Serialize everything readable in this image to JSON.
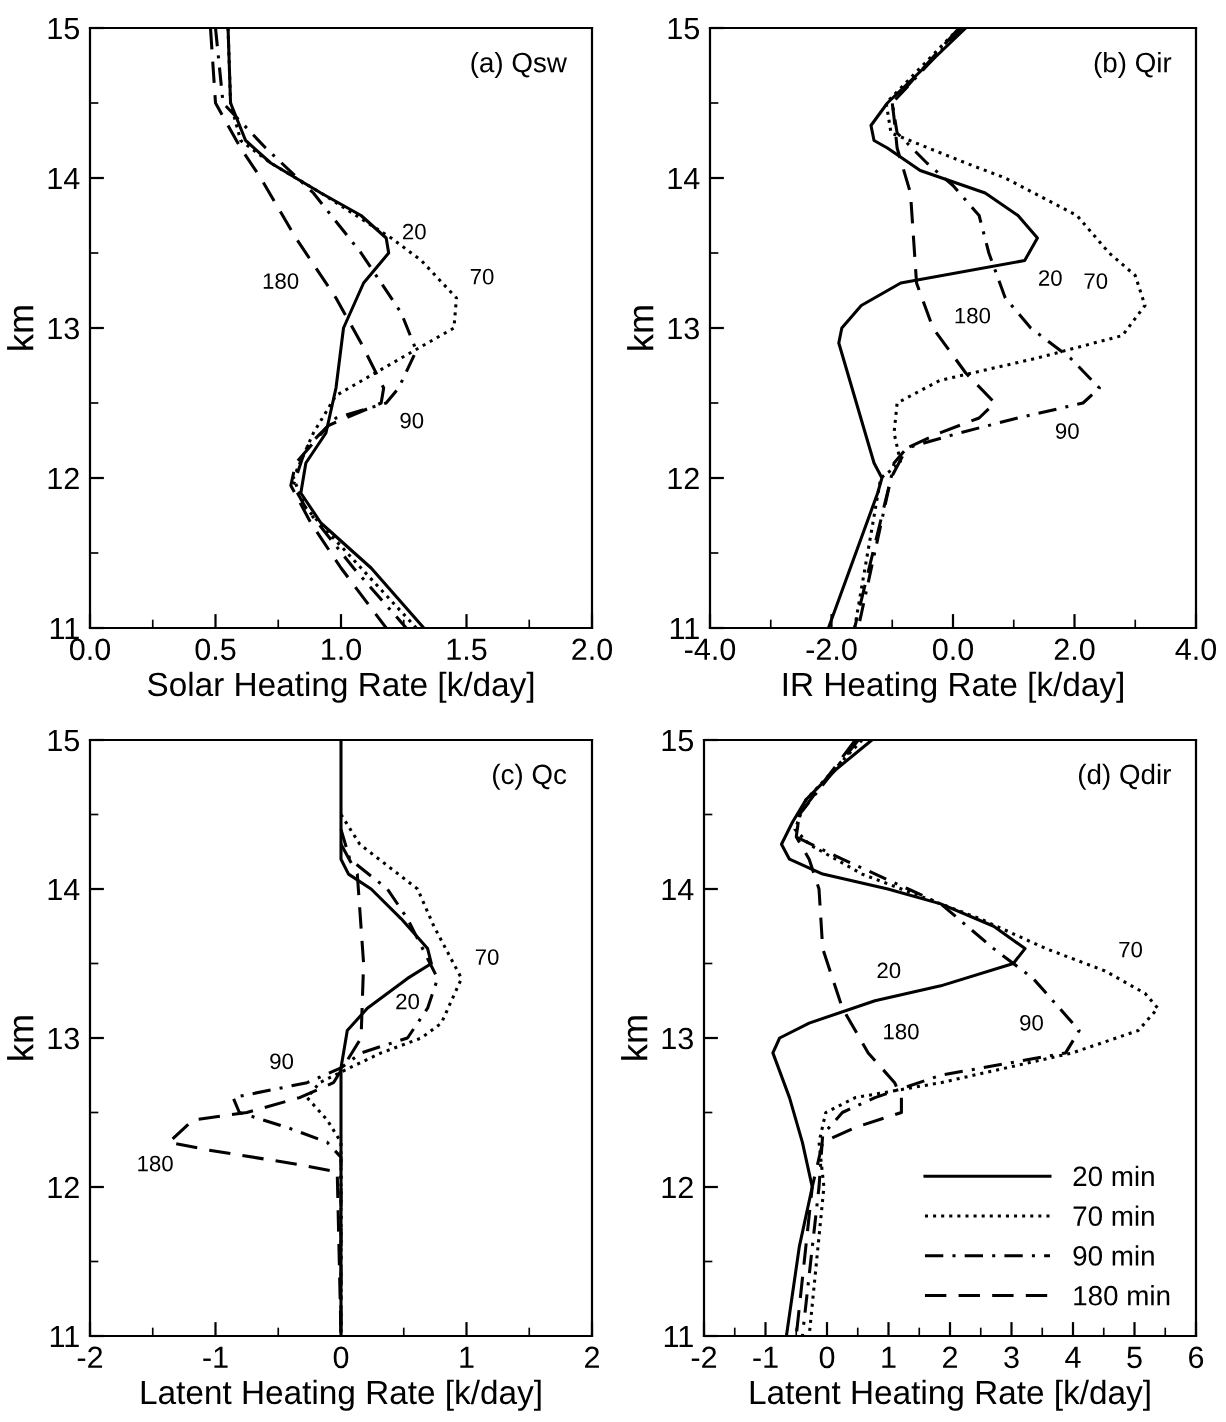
{
  "chart_data": [
    {
      "type": "line",
      "title": "(a) Qsw",
      "xlabel": "Solar Heating Rate [k/day]",
      "ylabel": "km",
      "xlim": [
        0,
        2
      ],
      "xticks": [
        {
          "value": 0,
          "label": "0.0"
        },
        {
          "value": 0.5,
          "label": "0.5"
        },
        {
          "value": 1,
          "label": "1.0"
        },
        {
          "value": 1.5,
          "label": "1.5"
        },
        {
          "value": 2,
          "label": "2.0"
        }
      ],
      "ylim": [
        11,
        15
      ],
      "yticks": [
        11,
        12,
        13,
        14,
        15
      ],
      "grid": false,
      "legend": false,
      "series": [
        {
          "color": "#000000",
          "line_style": "solid",
          "x": [
            0.55,
            0.56,
            0.62,
            0.72,
            0.92,
            1.08,
            1.18,
            1.19,
            1.09,
            1.01,
            0.98,
            0.94,
            0.86,
            0.84,
            0.92,
            1.12,
            1.33
          ],
          "values": [
            15,
            14.5,
            14.25,
            14.1,
            13.9,
            13.75,
            13.6,
            13.5,
            13.3,
            13.0,
            12.6,
            12.3,
            12.1,
            11.9,
            11.7,
            11.4,
            11.0
          ]
        },
        {
          "color": "#000000",
          "line_style": "dotted",
          "x": [
            0.55,
            0.56,
            0.6,
            0.72,
            0.92,
            1.06,
            1.2,
            1.32,
            1.46,
            1.45,
            1.24,
            0.98,
            0.89,
            0.81,
            0.86,
            1.08,
            1.3
          ],
          "values": [
            15,
            14.5,
            14.25,
            14.1,
            13.9,
            13.75,
            13.6,
            13.45,
            13.2,
            13.0,
            12.8,
            12.55,
            12.3,
            12.0,
            11.8,
            11.4,
            11.0
          ]
        },
        {
          "color": "#000000",
          "line_style": "dashdot",
          "x": [
            0.5,
            0.53,
            0.7,
            0.89,
            1.08,
            1.24,
            1.3,
            1.23,
            1.18,
            0.98,
            0.86,
            0.81,
            0.86,
            1.05,
            1.26
          ],
          "values": [
            15,
            14.5,
            14.2,
            13.9,
            13.5,
            13.1,
            12.85,
            12.6,
            12.5,
            12.4,
            12.2,
            11.95,
            11.8,
            11.4,
            11.0
          ]
        },
        {
          "color": "#000000",
          "line_style": "dashed",
          "x": [
            0.48,
            0.5,
            0.6,
            0.68,
            0.82,
            0.98,
            1.08,
            1.17,
            1.16,
            0.95,
            0.82,
            0.8,
            0.88,
            1.0,
            1.18
          ],
          "values": [
            15,
            14.5,
            14.2,
            14.0,
            13.6,
            13.2,
            12.9,
            12.6,
            12.5,
            12.35,
            12.1,
            11.95,
            11.7,
            11.4,
            11.0
          ]
        }
      ],
      "annotations": [
        {
          "text": "180",
          "x": 0.89,
          "y": 13.43
        },
        {
          "text": "20",
          "x": 1.19,
          "y": 13.5
        },
        {
          "text": "70",
          "x": 1.46,
          "y": 13.2
        },
        {
          "text": "90",
          "x": 1.18,
          "y": 12.5
        }
      ]
    },
    {
      "type": "line",
      "title": "(b) Qir",
      "xlabel": "IR Heating Rate [k/day]",
      "ylabel": "km",
      "xlim": [
        -4,
        4
      ],
      "xticks": [
        {
          "value": -4,
          "label": "-4.0"
        },
        {
          "value": -2,
          "label": "-2.0"
        },
        {
          "value": 0,
          "label": "0.0"
        },
        {
          "value": 2,
          "label": "2.0"
        },
        {
          "value": 4,
          "label": "4.0"
        }
      ],
      "ylim": [
        11,
        15
      ],
      "yticks": [
        11,
        12,
        13,
        14,
        15
      ],
      "grid": false,
      "legend": false,
      "series": [
        {
          "color": "#000000",
          "line_style": "solid",
          "x": [
            0.21,
            -1.08,
            -1.35,
            -1.3,
            -1.08,
            -0.54,
            0.53,
            1.07,
            1.39,
            1.18,
            -0.86,
            -1.51,
            -1.83,
            -1.88,
            -1.3,
            -1.17,
            -1.24,
            -2.05
          ],
          "values": [
            15,
            14.5,
            14.35,
            14.25,
            14.2,
            14.05,
            13.9,
            13.75,
            13.6,
            13.45,
            13.3,
            13.15,
            13.0,
            12.9,
            12.1,
            12.0,
            11.9,
            11.0
          ]
        },
        {
          "color": "#000000",
          "line_style": "dotted",
          "x": [
            0.1,
            -1.1,
            -1.02,
            0.21,
            0.86,
            2.04,
            2.57,
            3.0,
            3.16,
            2.79,
            1.39,
            -0.22,
            -0.92,
            -0.97,
            -0.86,
            -1.19,
            -1.62
          ],
          "values": [
            15,
            14.5,
            14.3,
            14.1,
            14.0,
            13.75,
            13.5,
            13.35,
            13.15,
            12.95,
            12.8,
            12.65,
            12.5,
            12.3,
            12.1,
            12.0,
            11.0
          ]
        },
        {
          "color": "#000000",
          "line_style": "dashdot",
          "x": [
            0.15,
            -1.0,
            -0.92,
            -0.43,
            0.0,
            0.43,
            0.59,
            0.86,
            1.28,
            1.93,
            2.41,
            2.14,
            1.07,
            0.1,
            -0.76,
            -0.97,
            -1.02,
            -1.56
          ],
          "values": [
            15,
            14.5,
            14.3,
            14.1,
            13.95,
            13.75,
            13.5,
            13.2,
            13.0,
            12.8,
            12.6,
            12.5,
            12.4,
            12.3,
            12.2,
            12.1,
            12.0,
            11.0
          ]
        },
        {
          "color": "#000000",
          "line_style": "dashed",
          "x": [
            0.1,
            -1.0,
            -0.97,
            -0.92,
            -0.7,
            -0.65,
            -0.6,
            -0.33,
            0.21,
            0.69,
            0.43,
            -0.22,
            -0.76,
            -1.02,
            -1.62
          ],
          "values": [
            15,
            14.5,
            14.4,
            14.2,
            13.9,
            13.6,
            13.3,
            13.0,
            12.7,
            12.5,
            12.4,
            12.3,
            12.2,
            12.0,
            11.0
          ]
        }
      ],
      "annotations": [
        {
          "text": "20",
          "x": 1.18,
          "y": 13.45
        },
        {
          "text": "70",
          "x": 2.77,
          "y": 13.43
        },
        {
          "text": "180",
          "x": -0.22,
          "y": 12.94
        },
        {
          "text": "90",
          "x": 1.46,
          "y": 12.43
        }
      ]
    },
    {
      "type": "line",
      "title": "(c) Qc",
      "xlabel": "Latent Heating Rate [k/day]",
      "ylabel": "km",
      "xlim": [
        -2,
        2
      ],
      "xticks": [
        -2,
        -1,
        0,
        1,
        2
      ],
      "ylim": [
        11,
        15
      ],
      "yticks": [
        11,
        12,
        13,
        14,
        15
      ],
      "grid": false,
      "legend": false,
      "series": [
        {
          "color": "#000000",
          "line_style": "solid",
          "x": [
            0,
            0,
            0.06,
            0.24,
            0.48,
            0.69,
            0.72,
            0.53,
            0.21,
            0.05,
            0.02,
            0,
            0
          ],
          "values": [
            15,
            14.2,
            14.1,
            14.0,
            13.8,
            13.6,
            13.5,
            13.4,
            13.2,
            13.05,
            12.9,
            12.8,
            11.0
          ]
        },
        {
          "color": "#000000",
          "line_style": "dotted",
          "x": [
            0,
            0.15,
            0.61,
            0.74,
            0.96,
            0.8,
            0.64,
            0.32,
            0.07,
            -0.17,
            -0.27,
            -0.11,
            0,
            0
          ],
          "values": [
            14.5,
            14.3,
            14.0,
            13.75,
            13.4,
            13.1,
            13.0,
            12.9,
            12.8,
            12.7,
            12.6,
            12.45,
            12.3,
            11.0
          ]
        },
        {
          "color": "#000000",
          "line_style": "dashdot",
          "x": [
            0,
            0.07,
            0.37,
            0.53,
            0.77,
            0.69,
            0.53,
            0.16,
            0,
            -0.27,
            -0.86,
            -0.81,
            -0.43,
            -0.11,
            0,
            0
          ],
          "values": [
            14.4,
            14.2,
            14.0,
            13.8,
            13.4,
            13.2,
            13.0,
            12.9,
            12.8,
            12.7,
            12.6,
            12.5,
            12.4,
            12.3,
            12.2,
            11.0
          ]
        },
        {
          "color": "#000000",
          "line_style": "dashed",
          "x": [
            0,
            0.13,
            0.18,
            0.16,
            0.05,
            -0.06,
            -0.33,
            -0.75,
            -1.18,
            -1.37,
            -1.07,
            -0.33,
            -0.03,
            0
          ],
          "values": [
            14.3,
            14.1,
            13.5,
            13.0,
            12.85,
            12.7,
            12.6,
            12.5,
            12.45,
            12.3,
            12.25,
            12.15,
            12.1,
            11.0
          ]
        }
      ],
      "annotations": [
        {
          "text": "20",
          "x": 0.53,
          "y": 13.4
        },
        {
          "text": "70",
          "x": 0.96,
          "y": 13.4
        },
        {
          "text": "90",
          "x": -0.27,
          "y": 12.7
        },
        {
          "text": "180",
          "x": -1.22,
          "y": 12.275
        }
      ]
    },
    {
      "type": "line",
      "title": "(d) Qdir",
      "xlabel": "Latent Heating Rate [k/day]",
      "ylabel": "km",
      "xlim": [
        -2,
        6
      ],
      "xticks": [
        -2,
        -1,
        0,
        1,
        2,
        3,
        4,
        5,
        6
      ],
      "ylim": [
        11,
        15
      ],
      "yticks": [
        11,
        12,
        13,
        14,
        15
      ],
      "grid": false,
      "legend": "lower right",
      "series": [
        {
          "name": "20 min",
          "color": "#000000",
          "line_style": "solid",
          "x": [
            0.73,
            0.14,
            -0.34,
            -0.56,
            -0.74,
            -0.61,
            -0.07,
            0.99,
            1.85,
            2.71,
            3.22,
            3.03,
            1.85,
            0.78,
            -0.29,
            -0.77,
            -0.88,
            -0.61,
            -0.4,
            -0.24,
            -0.45,
            -0.66
          ],
          "values": [
            15,
            14.8,
            14.6,
            14.45,
            14.3,
            14.2,
            14.1,
            14.0,
            13.9,
            13.75,
            13.6,
            13.5,
            13.35,
            13.25,
            13.1,
            13.0,
            12.9,
            12.6,
            12.3,
            12.0,
            11.6,
            11.0
          ]
        },
        {
          "name": "70 min",
          "color": "#000000",
          "line_style": "dotted",
          "x": [
            0.57,
            -0.34,
            -0.52,
            -0.29,
            0.57,
            1.21,
            2.49,
            3.56,
            4.52,
            5.17,
            5.38,
            5.06,
            3.99,
            1.85,
            0.46,
            -0.02,
            -0.13,
            -0.05,
            -0.29
          ],
          "values": [
            15,
            14.6,
            14.4,
            14.3,
            14.1,
            14.0,
            13.8,
            13.6,
            13.45,
            13.3,
            13.2,
            13.05,
            12.9,
            12.7,
            12.6,
            12.5,
            12.3,
            12.0,
            11.0
          ]
        },
        {
          "name": "90 min",
          "color": "#000000",
          "line_style": "dashdot",
          "x": [
            0.51,
            -0.45,
            -0.5,
            0.25,
            1.32,
            1.85,
            2.71,
            3.35,
            3.78,
            4.1,
            3.88,
            1.85,
            0.78,
            0.25,
            -0.07,
            -0.13,
            -0.4
          ],
          "values": [
            15,
            14.5,
            14.35,
            14.2,
            14.0,
            13.9,
            13.6,
            13.4,
            13.2,
            13.05,
            12.9,
            12.75,
            12.6,
            12.5,
            12.35,
            12.0,
            11.0
          ]
        },
        {
          "name": "180 min",
          "color": "#000000",
          "line_style": "dashed",
          "x": [
            0.46,
            -0.45,
            -0.5,
            -0.29,
            -0.13,
            -0.07,
            0.25,
            0.67,
            1.1,
            1.21,
            1.21,
            0.46,
            -0.07,
            -0.24,
            -0.5
          ],
          "values": [
            15,
            14.5,
            14.35,
            14.2,
            14.0,
            13.6,
            13.2,
            12.9,
            12.7,
            12.6,
            12.5,
            12.4,
            12.3,
            12.0,
            11.0
          ]
        }
      ],
      "annotations": [
        {
          "text": "70",
          "x": 4.52,
          "y": 13.45
        },
        {
          "text": "20",
          "x": 1.42,
          "y": 13.31
        },
        {
          "text": "90",
          "x": 3.74,
          "y": 13.22
        },
        {
          "text": "180",
          "x": 0.67,
          "y": 12.9
        }
      ]
    }
  ]
}
